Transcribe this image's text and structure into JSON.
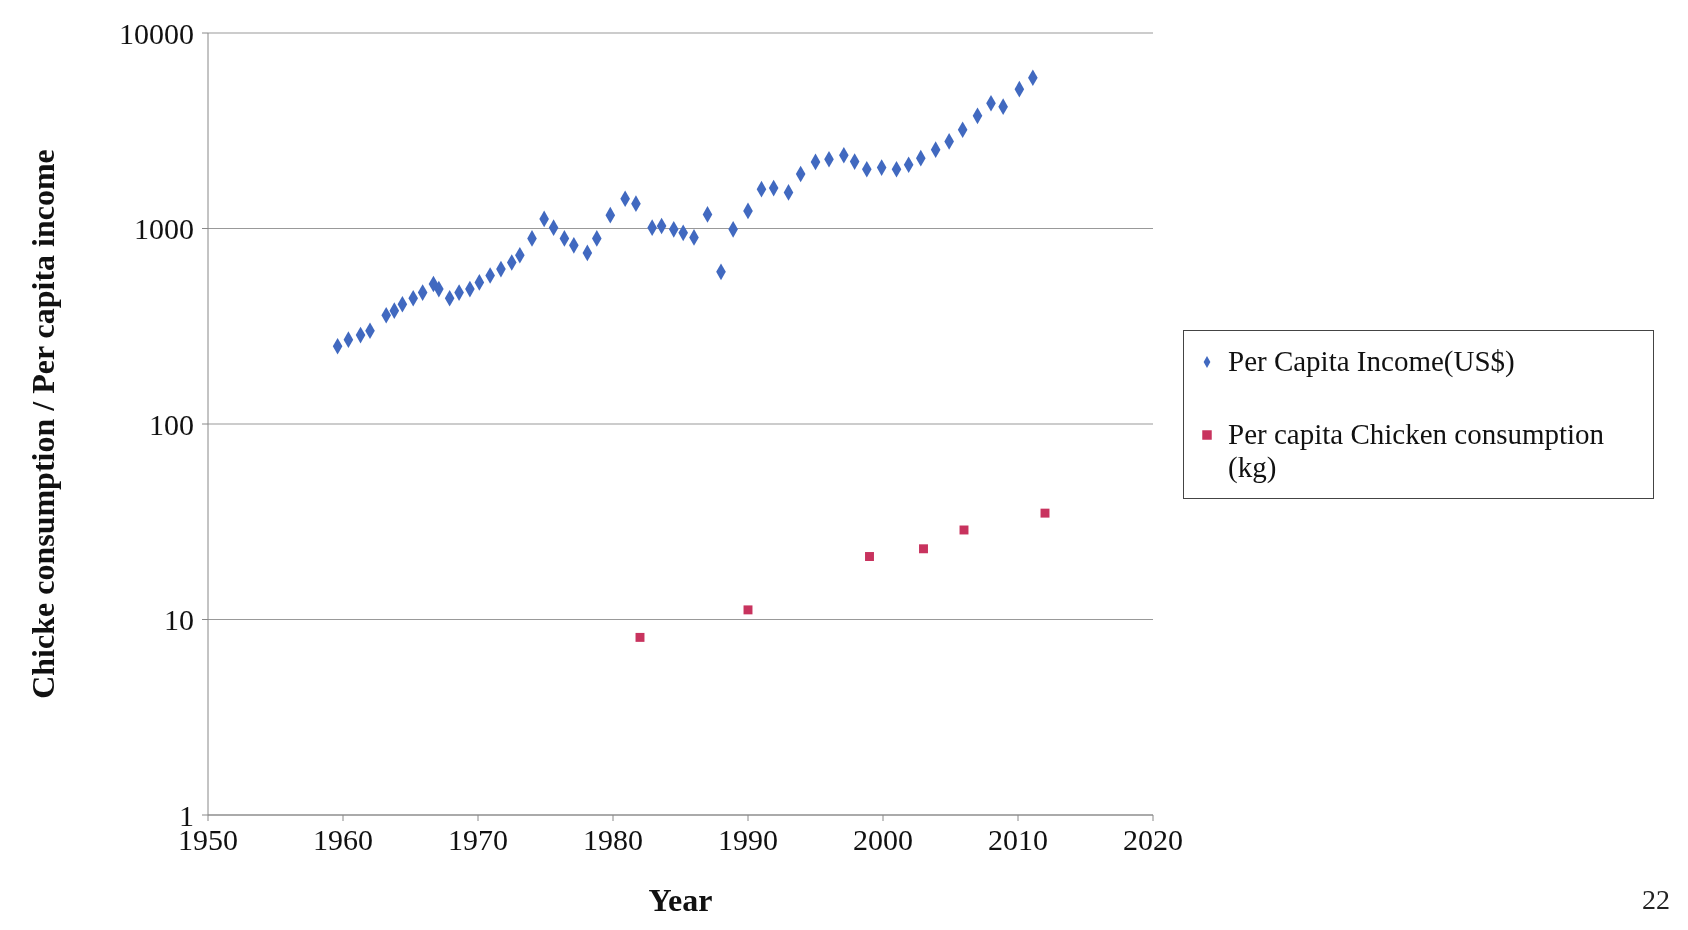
{
  "chart_data": {
    "type": "scatter",
    "xlabel": "Year",
    "ylabel": "Chicke consumption  / Per capita income",
    "xlim": [
      1950,
      2020
    ],
    "xticks": [
      1950,
      1960,
      1970,
      1980,
      1990,
      2000,
      2010,
      2020
    ],
    "ylim": [
      1,
      10000
    ],
    "yticks": [
      1,
      10,
      100,
      1000,
      10000
    ],
    "log": true,
    "grid": "y",
    "legend": "right",
    "annotations": [
      "22"
    ],
    "series": [
      {
        "name": "Per Capita Income(US$)",
        "color": "#4169c0",
        "marker": "diamond",
        "x": [
          1959.6,
          1960.4,
          1961.3,
          1962.0,
          1963.2,
          1963.8,
          1964.4,
          1965.2,
          1965.9,
          1966.7,
          1967.1,
          1967.9,
          1968.6,
          1969.4,
          1970.1,
          1970.9,
          1971.7,
          1972.5,
          1973.1,
          1974.0,
          1974.9,
          1975.6,
          1976.4,
          1977.1,
          1978.1,
          1978.8,
          1979.8,
          1980.9,
          1981.7,
          1982.9,
          1983.6,
          1984.5,
          1985.2,
          1986.0,
          1987.0,
          1988.0,
          1988.9,
          1990.0,
          1991.0,
          1991.9,
          1993.0,
          1993.9,
          1995.0,
          1996.0,
          1997.1,
          1997.9,
          1998.8,
          1999.9,
          2001.0,
          2001.9,
          2002.8,
          2003.9,
          2004.9,
          2005.9,
          2007.0,
          2008.0,
          2008.9,
          2010.1,
          2011.1
        ],
        "values": [
          250,
          270,
          285,
          300,
          360,
          380,
          410,
          440,
          470,
          520,
          490,
          440,
          470,
          490,
          530,
          575,
          620,
          670,
          730,
          890,
          1120,
          1010,
          890,
          820,
          750,
          890,
          1170,
          1420,
          1340,
          1010,
          1030,
          990,
          950,
          900,
          1180,
          600,
          990,
          1230,
          1590,
          1610,
          1530,
          1900,
          2190,
          2260,
          2370,
          2200,
          2010,
          2050,
          2010,
          2120,
          2290,
          2530,
          2790,
          3200,
          3770,
          4370,
          4200,
          5160,
          5900
        ]
      },
      {
        "name": "Per capita Chicken consumption (kg)",
        "color": "#c8335e",
        "marker": "square",
        "x": [
          1982,
          1990,
          1999,
          2003,
          2006,
          2012
        ],
        "values": [
          8.1,
          11.2,
          21,
          23,
          28.7,
          35
        ]
      }
    ]
  }
}
